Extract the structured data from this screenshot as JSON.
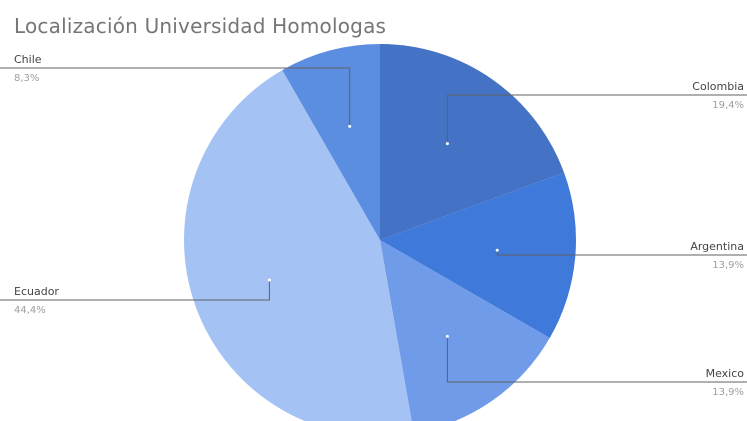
{
  "chart_data": {
    "type": "pie",
    "title": "Localización Universidad Homologas",
    "slices": [
      {
        "label": "Colombia",
        "value": 19.4,
        "value_label": "19,4%",
        "color": "#4472c4"
      },
      {
        "label": "Argentina",
        "value": 13.9,
        "value_label": "13,9%",
        "color": "#3f79d9"
      },
      {
        "label": "Mexico",
        "value": 13.9,
        "value_label": "13,9%",
        "color": "#6f9be9"
      },
      {
        "label": "Ecuador",
        "value": 44.4,
        "value_label": "44,4%",
        "color": "#a4c2f4"
      },
      {
        "label": "Chile",
        "value": 8.3,
        "value_label": "8,3%",
        "color": "#5b8ee0"
      }
    ],
    "start_angle_deg": 0,
    "direction": "clockwise",
    "legend": "none"
  }
}
